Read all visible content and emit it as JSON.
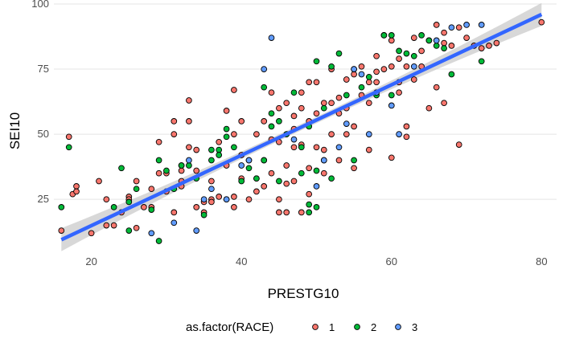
{
  "chart_data": {
    "type": "scatter",
    "xlabel": "PRESTG10",
    "ylabel": "SEI10",
    "xlim": [
      15,
      82
    ],
    "ylim": [
      5,
      100
    ],
    "x_ticks": [
      20,
      40,
      60,
      80
    ],
    "y_ticks": [
      25,
      50,
      75,
      100
    ],
    "grid": "horizontal-major",
    "legend": {
      "title": "as.factor(RACE)",
      "position": "bottom",
      "entries": [
        "1",
        "2",
        "3"
      ]
    },
    "colors": {
      "1": "#F8766D",
      "2": "#00BA38",
      "3": "#619CFF",
      "trend": "#3366FF",
      "band": "#c8c8c8"
    },
    "trend_line": {
      "x": [
        16,
        80
      ],
      "y": [
        9.5,
        96
      ]
    },
    "series": [
      {
        "name": "1",
        "points": [
          [
            16,
            13
          ],
          [
            17,
            49
          ],
          [
            17.5,
            27
          ],
          [
            18,
            30
          ],
          [
            18,
            28
          ],
          [
            20,
            12
          ],
          [
            21,
            32
          ],
          [
            22,
            25
          ],
          [
            22,
            15
          ],
          [
            23,
            15
          ],
          [
            24,
            20
          ],
          [
            25,
            26
          ],
          [
            25,
            25
          ],
          [
            26,
            14
          ],
          [
            27,
            22
          ],
          [
            28,
            22
          ],
          [
            28,
            29
          ],
          [
            29,
            35
          ],
          [
            29,
            47
          ],
          [
            30,
            28
          ],
          [
            30,
            35
          ],
          [
            31,
            20
          ],
          [
            31,
            50
          ],
          [
            31,
            55
          ],
          [
            32,
            32
          ],
          [
            32,
            38
          ],
          [
            32,
            36
          ],
          [
            32,
            30
          ],
          [
            33,
            63
          ],
          [
            33,
            55
          ],
          [
            34,
            44
          ],
          [
            34,
            36
          ],
          [
            34,
            22
          ],
          [
            35,
            24
          ],
          [
            35,
            20
          ],
          [
            36,
            25
          ],
          [
            36,
            32
          ],
          [
            36,
            24
          ],
          [
            37,
            47
          ],
          [
            37,
            26
          ],
          [
            38,
            59
          ],
          [
            38,
            38
          ],
          [
            38,
            25
          ],
          [
            39,
            67
          ],
          [
            39,
            50
          ],
          [
            39,
            22
          ],
          [
            39,
            26
          ],
          [
            40,
            55
          ],
          [
            40,
            42
          ],
          [
            41,
            40
          ],
          [
            41,
            25
          ],
          [
            42,
            50
          ],
          [
            42,
            33
          ],
          [
            42,
            28
          ],
          [
            43,
            40
          ],
          [
            43,
            55
          ],
          [
            43,
            30
          ],
          [
            44,
            35
          ],
          [
            44,
            66
          ],
          [
            44,
            48
          ],
          [
            45,
            60
          ],
          [
            45,
            47
          ],
          [
            45,
            25
          ],
          [
            45,
            20
          ],
          [
            46,
            62
          ],
          [
            46,
            38
          ],
          [
            46,
            31
          ],
          [
            46,
            20
          ],
          [
            47,
            57
          ],
          [
            47,
            45
          ],
          [
            47,
            32
          ],
          [
            48,
            66
          ],
          [
            48,
            46
          ],
          [
            48,
            60
          ],
          [
            48,
            20
          ],
          [
            49,
            70
          ],
          [
            49,
            55
          ],
          [
            49,
            37
          ],
          [
            49,
            27
          ],
          [
            50,
            70
          ],
          [
            50,
            58
          ],
          [
            50,
            45
          ],
          [
            51,
            62
          ],
          [
            51,
            44
          ],
          [
            51,
            35
          ],
          [
            52,
            75
          ],
          [
            52,
            62
          ],
          [
            52,
            50
          ],
          [
            53,
            64
          ],
          [
            53,
            40
          ],
          [
            54,
            71
          ],
          [
            54,
            60
          ],
          [
            54,
            50
          ],
          [
            55,
            73
          ],
          [
            55,
            53
          ],
          [
            55,
            37
          ],
          [
            56,
            76
          ],
          [
            56,
            65
          ],
          [
            57,
            62
          ],
          [
            57,
            44
          ],
          [
            58,
            80
          ],
          [
            58,
            74
          ],
          [
            58,
            70
          ],
          [
            59,
            88
          ],
          [
            59,
            75
          ],
          [
            60,
            86
          ],
          [
            60,
            76
          ],
          [
            60,
            41
          ],
          [
            61,
            79
          ],
          [
            61,
            70
          ],
          [
            62,
            53
          ],
          [
            62,
            49
          ],
          [
            62,
            76
          ],
          [
            63,
            87
          ],
          [
            63,
            71
          ],
          [
            64,
            82
          ],
          [
            64,
            76
          ],
          [
            65,
            86
          ],
          [
            65,
            60
          ],
          [
            66,
            92
          ],
          [
            66,
            68
          ],
          [
            67,
            62
          ],
          [
            67,
            85
          ],
          [
            68,
            84
          ],
          [
            69,
            91
          ],
          [
            69,
            46
          ],
          [
            70,
            87
          ],
          [
            71,
            84
          ],
          [
            72,
            83
          ],
          [
            73,
            84
          ],
          [
            74,
            85
          ],
          [
            80,
            93
          ],
          [
            26,
            32
          ],
          [
            33,
            45
          ],
          [
            40,
            33
          ],
          [
            47,
            52
          ],
          [
            53,
            58
          ],
          [
            57,
            70
          ],
          [
            61,
            66
          ],
          [
            67,
            89
          ]
        ]
      },
      {
        "name": "2",
        "points": [
          [
            16,
            22
          ],
          [
            17,
            45
          ],
          [
            23,
            22
          ],
          [
            24,
            37
          ],
          [
            25,
            24
          ],
          [
            25,
            13
          ],
          [
            26,
            29
          ],
          [
            28,
            21
          ],
          [
            29,
            40
          ],
          [
            29,
            9
          ],
          [
            30,
            36
          ],
          [
            31,
            29
          ],
          [
            32,
            38
          ],
          [
            33,
            38
          ],
          [
            34,
            33
          ],
          [
            35,
            19
          ],
          [
            36,
            40
          ],
          [
            36,
            44
          ],
          [
            37,
            44
          ],
          [
            37,
            42
          ],
          [
            38,
            52
          ],
          [
            38,
            49
          ],
          [
            39,
            45
          ],
          [
            40,
            32
          ],
          [
            41,
            37
          ],
          [
            42,
            33
          ],
          [
            43,
            68
          ],
          [
            43,
            40
          ],
          [
            44,
            53
          ],
          [
            44,
            58
          ],
          [
            45,
            32
          ],
          [
            45,
            55
          ],
          [
            46,
            50
          ],
          [
            47,
            66
          ],
          [
            48,
            45
          ],
          [
            48,
            35
          ],
          [
            49,
            53
          ],
          [
            49,
            23
          ],
          [
            49,
            20
          ],
          [
            50,
            78
          ],
          [
            50,
            36
          ],
          [
            50,
            22
          ],
          [
            51,
            60
          ],
          [
            51,
            40
          ],
          [
            52,
            76
          ],
          [
            52,
            33
          ],
          [
            53,
            81
          ],
          [
            54,
            65
          ],
          [
            55,
            75
          ],
          [
            55,
            40
          ],
          [
            56,
            68
          ],
          [
            57,
            72
          ],
          [
            58,
            65
          ],
          [
            59,
            88
          ],
          [
            60,
            88
          ],
          [
            60,
            65
          ],
          [
            61,
            82
          ],
          [
            62,
            81
          ],
          [
            63,
            80
          ],
          [
            64,
            88
          ],
          [
            65,
            86
          ],
          [
            66,
            84
          ],
          [
            67,
            83
          ],
          [
            68,
            73
          ],
          [
            72,
            78
          ]
        ]
      },
      {
        "name": "3",
        "points": [
          [
            28,
            12
          ],
          [
            31,
            16
          ],
          [
            33,
            40
          ],
          [
            34,
            13
          ],
          [
            35,
            25
          ],
          [
            36,
            29
          ],
          [
            38,
            25
          ],
          [
            40,
            38
          ],
          [
            41,
            40
          ],
          [
            43,
            75
          ],
          [
            44,
            87
          ],
          [
            47,
            48
          ],
          [
            50,
            30
          ],
          [
            51,
            40
          ],
          [
            53,
            45
          ],
          [
            54,
            54
          ],
          [
            55,
            75
          ],
          [
            56,
            73
          ],
          [
            57,
            50
          ],
          [
            58,
            66
          ],
          [
            60,
            61
          ],
          [
            61,
            50
          ],
          [
            63,
            76
          ],
          [
            66,
            86
          ],
          [
            68,
            91
          ],
          [
            70,
            92
          ],
          [
            72,
            92
          ]
        ]
      }
    ]
  }
}
